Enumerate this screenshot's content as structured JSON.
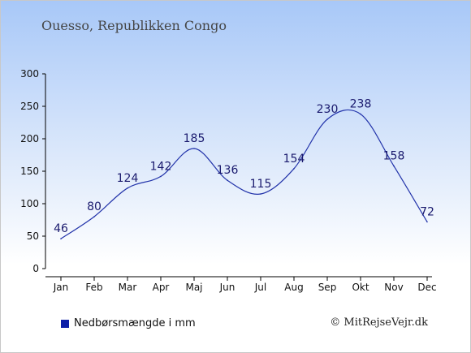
{
  "title": "Ouesso, Republikken Congo",
  "legend": {
    "label": "Nedbørsmængde i mm",
    "color": "#0d1fa8"
  },
  "credit": "© MitRejseVejr.dk",
  "chart_data": {
    "type": "line",
    "categories": [
      "Jan",
      "Feb",
      "Mar",
      "Apr",
      "Maj",
      "Jun",
      "Jul",
      "Aug",
      "Sep",
      "Okt",
      "Nov",
      "Dec"
    ],
    "series": [
      {
        "name": "Nedbørsmængde i mm",
        "values": [
          46,
          80,
          124,
          142,
          185,
          136,
          115,
          154,
          230,
          238,
          158,
          72
        ],
        "color": "#2233aa"
      }
    ],
    "yticks": [
      0,
      50,
      100,
      150,
      200,
      250,
      300
    ],
    "ylim": [
      0,
      300
    ],
    "grid": false,
    "legend_position": "bottom-left"
  }
}
